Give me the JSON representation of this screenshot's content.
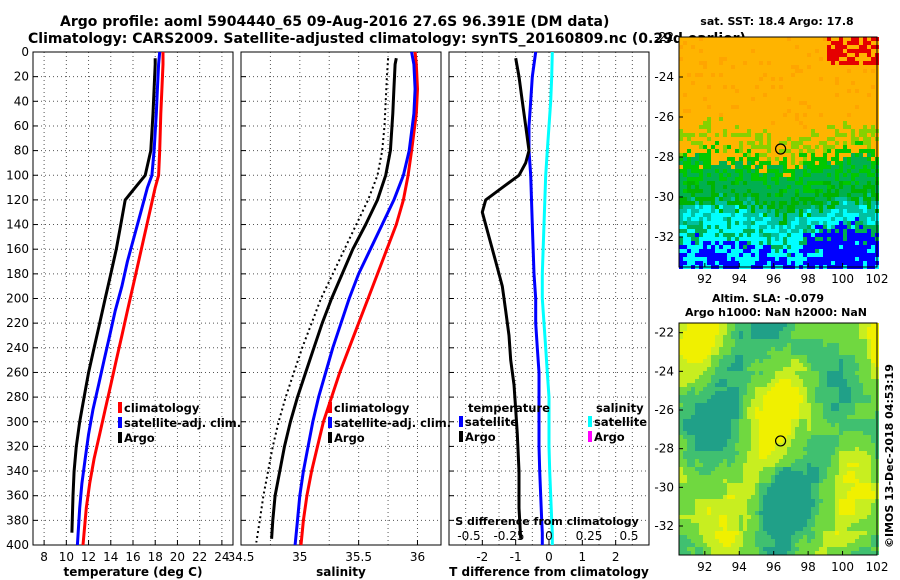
{
  "title_line1": "Argo profile: aoml 5904440_65 09-Aug-2016 27.6S 96.391E (DM data)",
  "title_line2": "Climatology: CARS2009. Satellite-adjusted climatology: synTS_20160809.nc (0.29d earlier)",
  "watermark": "©IMOS 13-Dec-2018 04:53:19",
  "colors": {
    "climatology": "#ff0000",
    "satellite": "#0000ff",
    "argo": "#000000",
    "sal_satellite": "#00ffff",
    "sal_argo": "#ff00ff"
  },
  "chart_data": [
    {
      "id": "temperature",
      "type": "line",
      "xlabel": "temperature (deg C)",
      "ylabel": "",
      "xlim": [
        7,
        25
      ],
      "ylim": [
        0,
        400
      ],
      "xticks": [
        "8",
        "10",
        "12",
        "14",
        "16",
        "18",
        "20",
        "22",
        "24"
      ],
      "xtick_values": [
        8,
        10,
        12,
        14,
        16,
        18,
        20,
        22,
        24
      ],
      "yticks": [
        "0",
        "20",
        "40",
        "60",
        "80",
        "100",
        "120",
        "140",
        "160",
        "180",
        "200",
        "220",
        "240",
        "260",
        "280",
        "300",
        "320",
        "340",
        "360",
        "380",
        "400"
      ],
      "ytick_values": [
        0,
        20,
        40,
        60,
        80,
        100,
        120,
        140,
        160,
        180,
        200,
        220,
        240,
        260,
        280,
        300,
        320,
        340,
        360,
        380,
        400
      ],
      "legend": [
        "climatology",
        "satellite-adj. clim.",
        "Argo"
      ],
      "series": [
        {
          "name": "climatology",
          "color": "#ff0000",
          "x": [
            18.7,
            18.7,
            18.6,
            18.5,
            18.4,
            18.3,
            18.0,
            17.5,
            17.0,
            16.5,
            16.0,
            15.5,
            15.0,
            14.5,
            14.0,
            13.5,
            13.0,
            12.5,
            12.1,
            11.8,
            11.5
          ],
          "y": [
            0,
            10,
            30,
            50,
            80,
            100,
            110,
            130,
            150,
            170,
            190,
            210,
            230,
            250,
            270,
            290,
            310,
            330,
            350,
            370,
            400
          ]
        },
        {
          "name": "satellite-adj. clim.",
          "color": "#0000ff",
          "x": [
            18.4,
            18.3,
            18.2,
            18.1,
            17.9,
            17.7,
            17.3,
            16.7,
            16.1,
            15.5,
            15.0,
            14.4,
            13.9,
            13.4,
            12.9,
            12.4,
            12.0,
            11.7,
            11.4,
            11.2,
            11.0
          ],
          "y": [
            0,
            10,
            30,
            50,
            80,
            100,
            110,
            130,
            150,
            170,
            190,
            210,
            230,
            250,
            270,
            290,
            310,
            330,
            350,
            370,
            400
          ]
        },
        {
          "name": "Argo",
          "color": "#000000",
          "x": [
            18.0,
            18.0,
            17.9,
            17.8,
            17.6,
            17.1,
            16.2,
            15.3,
            14.9,
            14.5,
            14.0,
            13.5,
            13.0,
            12.5,
            12.0,
            11.6,
            11.2,
            10.9,
            10.7,
            10.6,
            10.5
          ],
          "y": [
            5,
            10,
            30,
            50,
            80,
            100,
            110,
            120,
            140,
            160,
            180,
            200,
            220,
            240,
            260,
            280,
            300,
            320,
            340,
            360,
            390
          ]
        }
      ]
    },
    {
      "id": "salinity",
      "type": "line",
      "xlabel": "salinity",
      "ylabel": "",
      "xlim": [
        34.5,
        36.2
      ],
      "ylim": [
        0,
        400
      ],
      "xticks": [
        "34.5",
        "35",
        "35.5",
        "36"
      ],
      "xtick_values": [
        34.5,
        35,
        35.5,
        36
      ],
      "legend": [
        "climatology",
        "satellite-adj. clim.",
        "Argo"
      ],
      "series": [
        {
          "name": "climatology",
          "color": "#ff0000",
          "x": [
            35.98,
            35.99,
            36.0,
            35.99,
            35.95,
            35.92,
            35.88,
            35.82,
            35.74,
            35.66,
            35.58,
            35.5,
            35.42,
            35.34,
            35.27,
            35.2,
            35.15,
            35.1,
            35.06,
            35.03,
            35.01
          ],
          "y": [
            0,
            10,
            30,
            50,
            80,
            100,
            120,
            140,
            160,
            180,
            200,
            220,
            240,
            260,
            280,
            300,
            320,
            340,
            360,
            380,
            400
          ]
        },
        {
          "name": "satellite-adj. clim.",
          "color": "#0000ff",
          "x": [
            35.95,
            35.97,
            35.98,
            35.97,
            35.93,
            35.88,
            35.8,
            35.7,
            35.6,
            35.5,
            35.42,
            35.35,
            35.28,
            35.22,
            35.16,
            35.11,
            35.07,
            35.03,
            35.0,
            34.98,
            34.96
          ],
          "y": [
            0,
            10,
            30,
            50,
            80,
            100,
            120,
            140,
            160,
            180,
            200,
            220,
            240,
            260,
            280,
            300,
            320,
            340,
            360,
            380,
            400
          ]
        },
        {
          "name": "Argo",
          "color": "#000000",
          "x": [
            35.82,
            35.81,
            35.8,
            35.79,
            35.77,
            35.73,
            35.66,
            35.56,
            35.45,
            35.36,
            35.27,
            35.19,
            35.12,
            35.05,
            34.98,
            34.92,
            34.87,
            34.83,
            34.79,
            34.77,
            34.76
          ],
          "y": [
            5,
            10,
            30,
            50,
            80,
            100,
            120,
            140,
            160,
            180,
            200,
            220,
            240,
            260,
            280,
            300,
            320,
            340,
            360,
            380,
            395
          ]
        }
      ]
    },
    {
      "id": "difference",
      "type": "line",
      "xlabel": "T difference from climatology",
      "xlabel_top": "S difference from climatology",
      "xlim": [
        -3,
        3
      ],
      "ylim": [
        0,
        400
      ],
      "xticks": [
        "-2",
        "-1",
        "0",
        "1",
        "2"
      ],
      "xtick_values": [
        -2,
        -1,
        0,
        1,
        2
      ],
      "xticks_top": [
        "-0.5",
        "-0.25",
        "0",
        "0.25",
        "0.5"
      ],
      "legend_headers": [
        "temperature",
        "salinity"
      ],
      "legend_left": [
        "satellite",
        "Argo"
      ],
      "legend_right": [
        "satellite",
        "Argo"
      ],
      "series": [
        {
          "name": "T satellite",
          "color": "#0000ff",
          "x": [
            -0.4,
            -0.5,
            -0.55,
            -0.6,
            -0.6,
            -0.55,
            -0.5,
            -0.45,
            -0.4,
            -0.4,
            -0.35,
            -0.3,
            -0.3,
            -0.3,
            -0.3,
            -0.28,
            -0.25,
            -0.22,
            -0.2,
            -0.2
          ],
          "y": [
            0,
            20,
            40,
            60,
            80,
            100,
            140,
            180,
            200,
            220,
            240,
            260,
            280,
            300,
            320,
            340,
            360,
            380,
            390,
            400
          ]
        },
        {
          "name": "S satellite",
          "color": "#00ffff",
          "x": [
            0.1,
            0.08,
            0.05,
            0.0,
            -0.05,
            -0.1,
            -0.15,
            -0.2,
            -0.2,
            -0.15,
            -0.1,
            -0.05,
            0.0,
            0.0,
            0.0,
            0.02,
            0.05,
            0.08,
            0.1,
            0.1
          ],
          "y": [
            0,
            20,
            40,
            60,
            80,
            100,
            140,
            180,
            200,
            220,
            240,
            260,
            280,
            300,
            320,
            340,
            360,
            380,
            390,
            400
          ]
        },
        {
          "name": "T Argo",
          "color": "#000000",
          "x": [
            -1.0,
            -0.9,
            -0.8,
            -0.7,
            -0.6,
            -0.7,
            -0.9,
            -1.4,
            -1.9,
            -2.0,
            -1.8,
            -1.6,
            -1.4,
            -1.3,
            -1.2,
            -1.15,
            -1.05,
            -1.0,
            -0.95,
            -0.9,
            -0.9,
            -0.85
          ],
          "y": [
            5,
            20,
            40,
            60,
            80,
            90,
            100,
            110,
            120,
            130,
            150,
            170,
            190,
            210,
            230,
            250,
            270,
            290,
            310,
            340,
            370,
            395
          ]
        }
      ]
    },
    {
      "id": "sst_map",
      "type": "heatmap",
      "title": "sat. SST: 18.4 Argo: 17.8",
      "xlim": [
        90.5,
        102
      ],
      "ylim": [
        -33.5,
        -22
      ],
      "xticks": [
        "92",
        "94",
        "96",
        "98",
        "100",
        "102"
      ],
      "xtick_values": [
        92,
        94,
        96,
        98,
        100,
        102
      ],
      "yticks": [
        "-22",
        "-24",
        "-26",
        "-28",
        "-30",
        "-32"
      ],
      "ytick_values": [
        -22,
        -24,
        -26,
        -28,
        -30,
        -32
      ],
      "marker": {
        "lon": 96.4,
        "lat": -27.6
      }
    },
    {
      "id": "sla_map",
      "type": "heatmap",
      "title_line1": "Altim. SLA: -0.079",
      "title_line2": "Argo h1000: NaN h2000: NaN",
      "xlim": [
        90.5,
        102
      ],
      "ylim": [
        -33.5,
        -21.5
      ],
      "xticks": [
        "92",
        "94",
        "96",
        "98",
        "100",
        "102"
      ],
      "xtick_values": [
        92,
        94,
        96,
        98,
        100,
        102
      ],
      "yticks": [
        "-22",
        "-24",
        "-26",
        "-28",
        "-30",
        "-32"
      ],
      "ytick_values": [
        -22,
        -24,
        -26,
        -28,
        -30,
        -32
      ],
      "marker": {
        "lon": 96.4,
        "lat": -27.6
      }
    }
  ]
}
